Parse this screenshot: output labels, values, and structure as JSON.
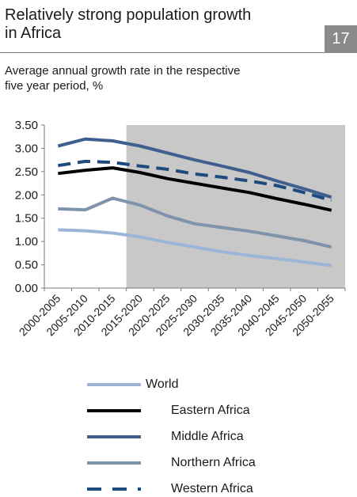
{
  "header": {
    "title_line1": "Relatively strong population growth",
    "title_line2": "in Africa",
    "page_number": "17",
    "subtitle_line1": "Average annual growth rate in the respective",
    "subtitle_line2": "five year period, %"
  },
  "chart_data": {
    "type": "line",
    "title": "Relatively strong population growth in Africa",
    "subtitle": "Average annual growth rate in the respective five year period, %",
    "categories": [
      "2000-2005",
      "2005-2010",
      "2010-2015",
      "2015-2020",
      "2020-2025",
      "2025-2030",
      "2030-2035",
      "2035-2040",
      "2040-2045",
      "2045-2050",
      "2050-2055"
    ],
    "ylim": [
      0,
      3.5
    ],
    "yticks": [
      "0.00",
      "0.50",
      "1.00",
      "1.50",
      "2.00",
      "2.50",
      "3.00",
      "3.50"
    ],
    "projection_shading_from": "2015-2020",
    "grid": false,
    "legend_position": "bottom",
    "series": [
      {
        "name": "World",
        "color": "#9db5d9",
        "dash": false,
        "values": [
          1.25,
          1.23,
          1.18,
          1.1,
          0.98,
          0.88,
          0.78,
          0.7,
          0.63,
          0.56,
          0.48
        ]
      },
      {
        "name": "Eastern Africa",
        "color": "#000000",
        "dash": false,
        "values": [
          2.46,
          2.53,
          2.58,
          2.48,
          2.35,
          2.25,
          2.15,
          2.05,
          1.92,
          1.8,
          1.67
        ]
      },
      {
        "name": "Middle Africa",
        "color": "#3f5f8f",
        "dash": false,
        "values": [
          3.05,
          3.2,
          3.16,
          3.05,
          2.9,
          2.75,
          2.62,
          2.48,
          2.3,
          2.13,
          1.95
        ]
      },
      {
        "name": "Northern Africa",
        "color": "#7f93ab",
        "dash": false,
        "values": [
          1.7,
          1.68,
          1.93,
          1.78,
          1.55,
          1.38,
          1.3,
          1.22,
          1.12,
          1.02,
          0.88
        ]
      },
      {
        "name": "Western Africa",
        "color": "#1f4a7c",
        "dash": true,
        "values": [
          2.63,
          2.72,
          2.7,
          2.62,
          2.55,
          2.45,
          2.38,
          2.3,
          2.2,
          2.05,
          1.88
        ]
      }
    ]
  }
}
